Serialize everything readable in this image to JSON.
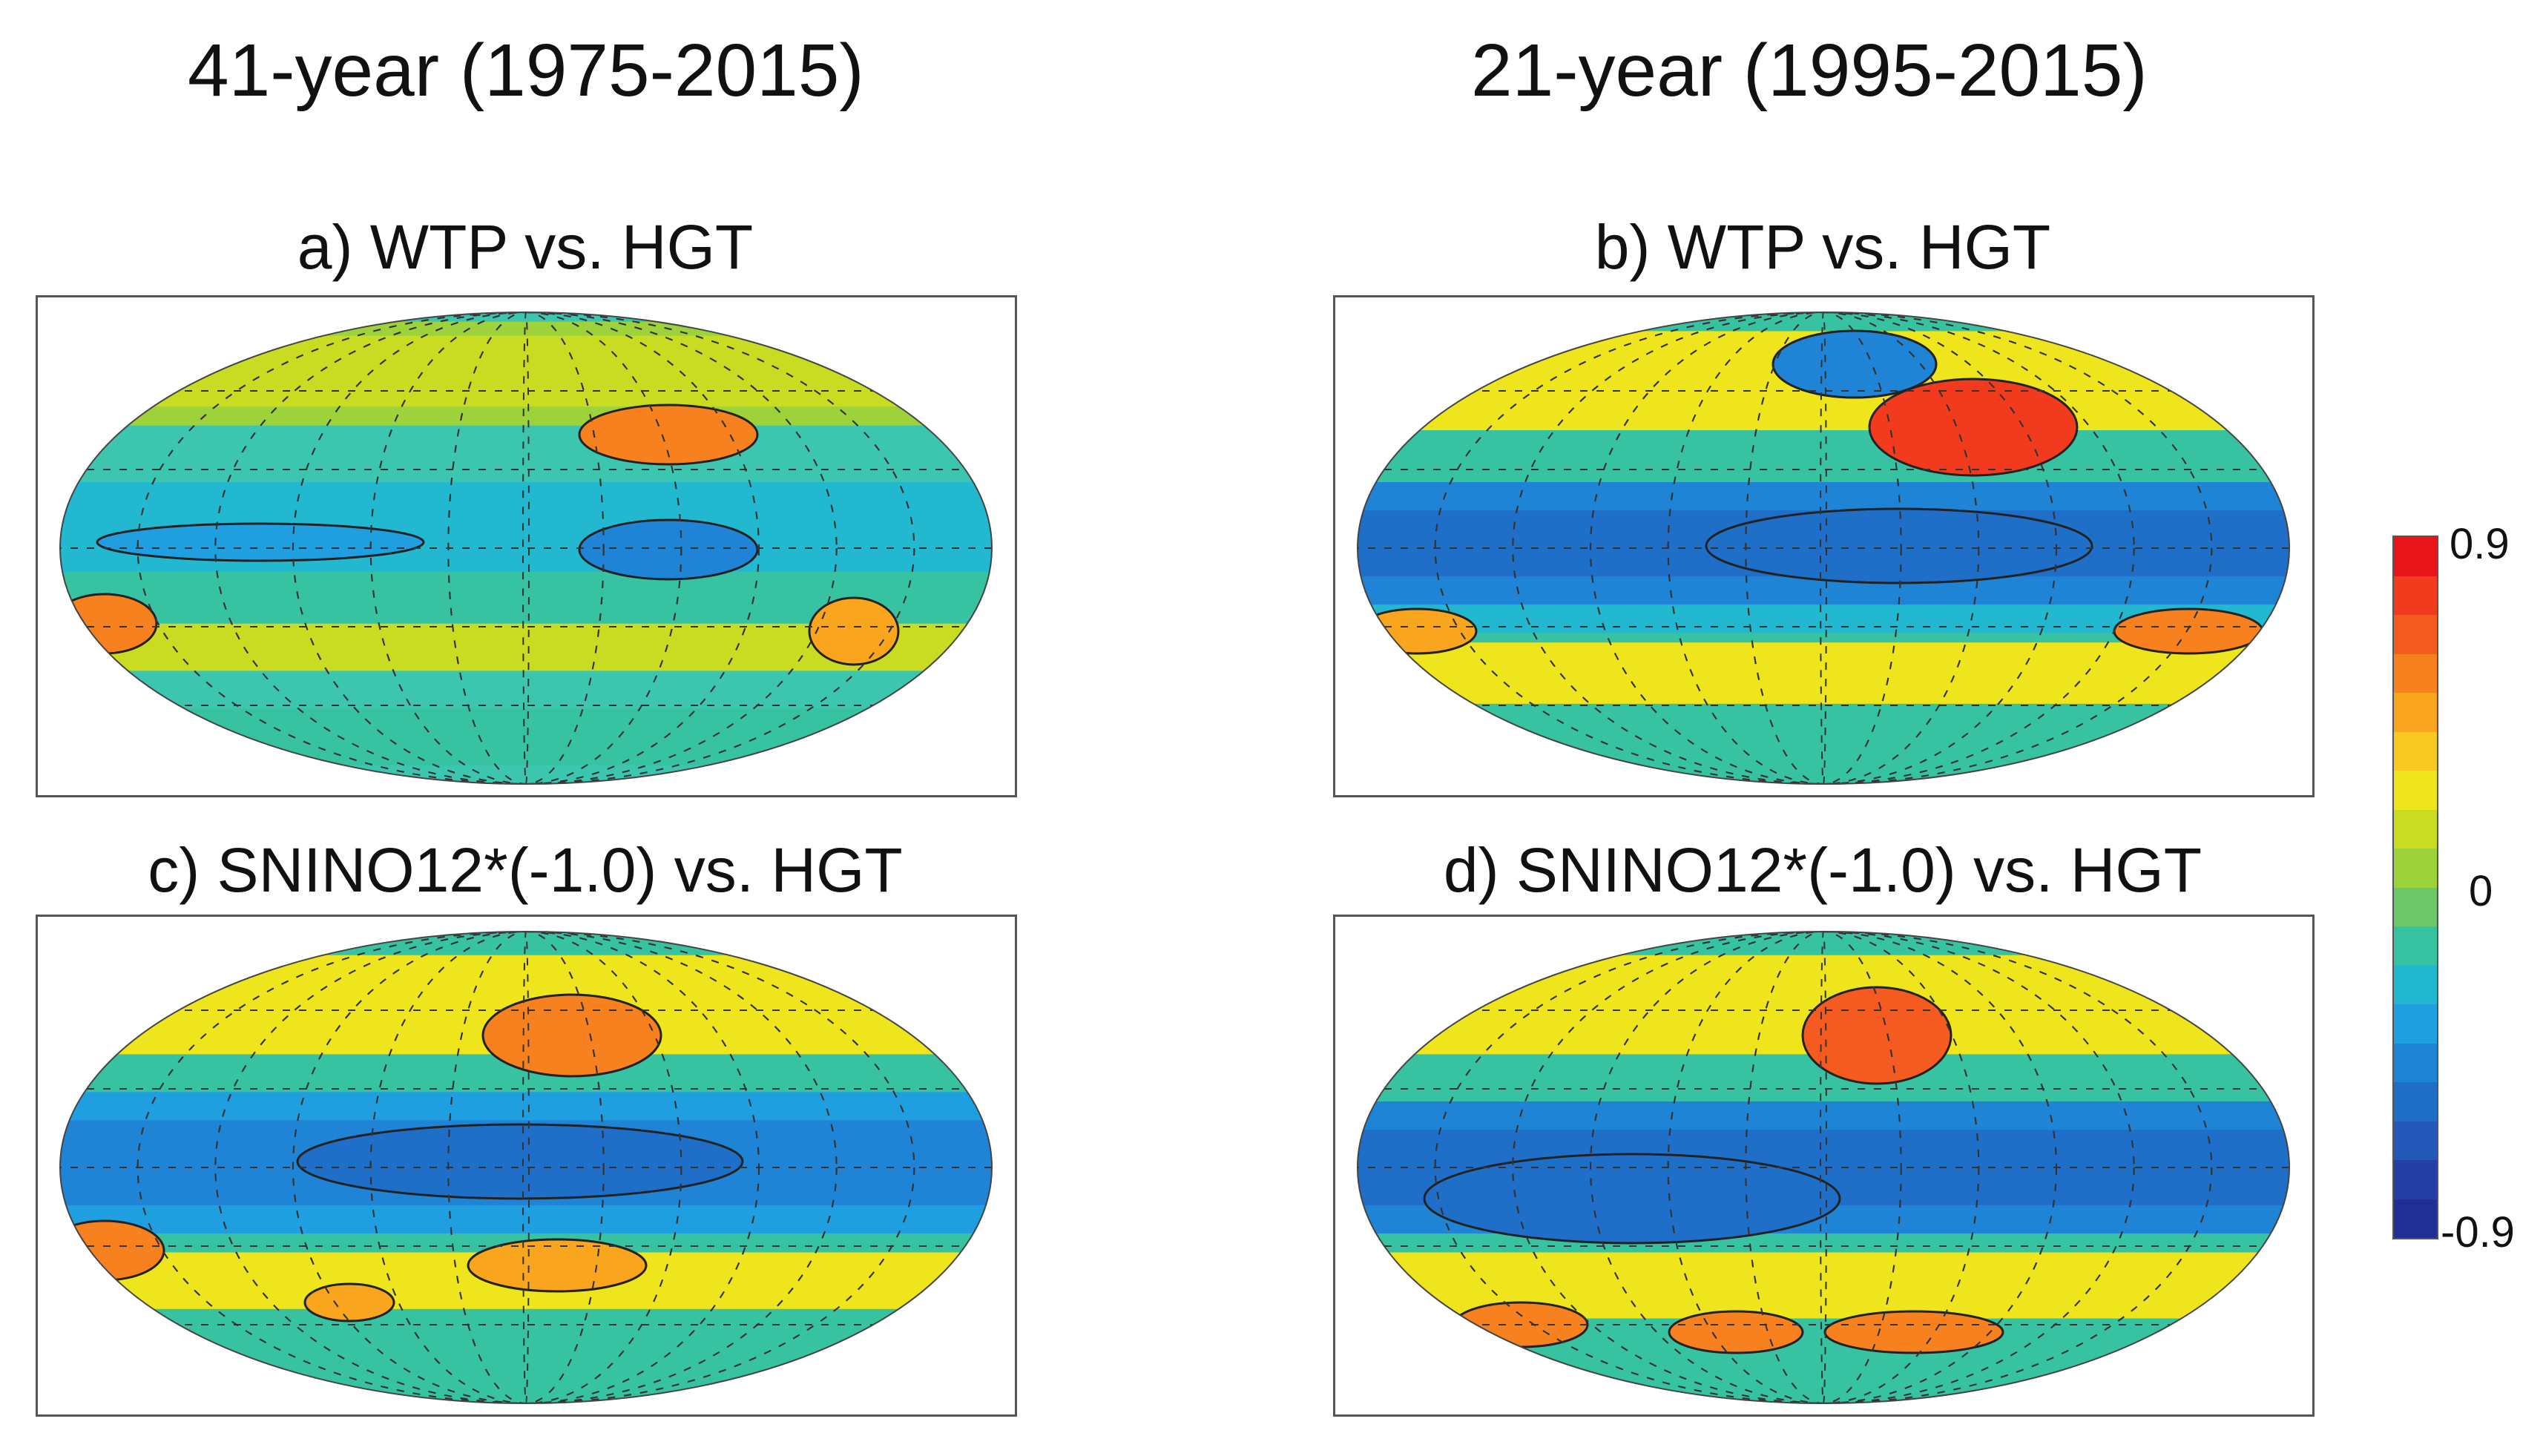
{
  "columns": [
    {
      "title": "41-year (1975-2015)"
    },
    {
      "title": "21-year (1995-2015)"
    }
  ],
  "panels": [
    {
      "label": "a) WTP vs. HGT"
    },
    {
      "label": "b) WTP vs. HGT"
    },
    {
      "label": "c) SNINO12*(-1.0) vs. HGT"
    },
    {
      "label": "d) SNINO12*(-1.0) vs. HGT"
    }
  ],
  "colorbar": {
    "max_label": "0.9",
    "mid_label": "0",
    "min_label": "-0.9",
    "colors": [
      "#e8161b",
      "#f23a1f",
      "#f55a20",
      "#f7801f",
      "#f9a51d",
      "#f7c81f",
      "#eee51c",
      "#c9dc21",
      "#9ed23a",
      "#6cc86a",
      "#37c2a1",
      "#22b8cf",
      "#1f9fe0",
      "#1f84d6",
      "#1f6ec8",
      "#2358b8",
      "#243fa6",
      "#1f2f96"
    ]
  },
  "icons": [
    "map-projection-frame"
  ]
}
